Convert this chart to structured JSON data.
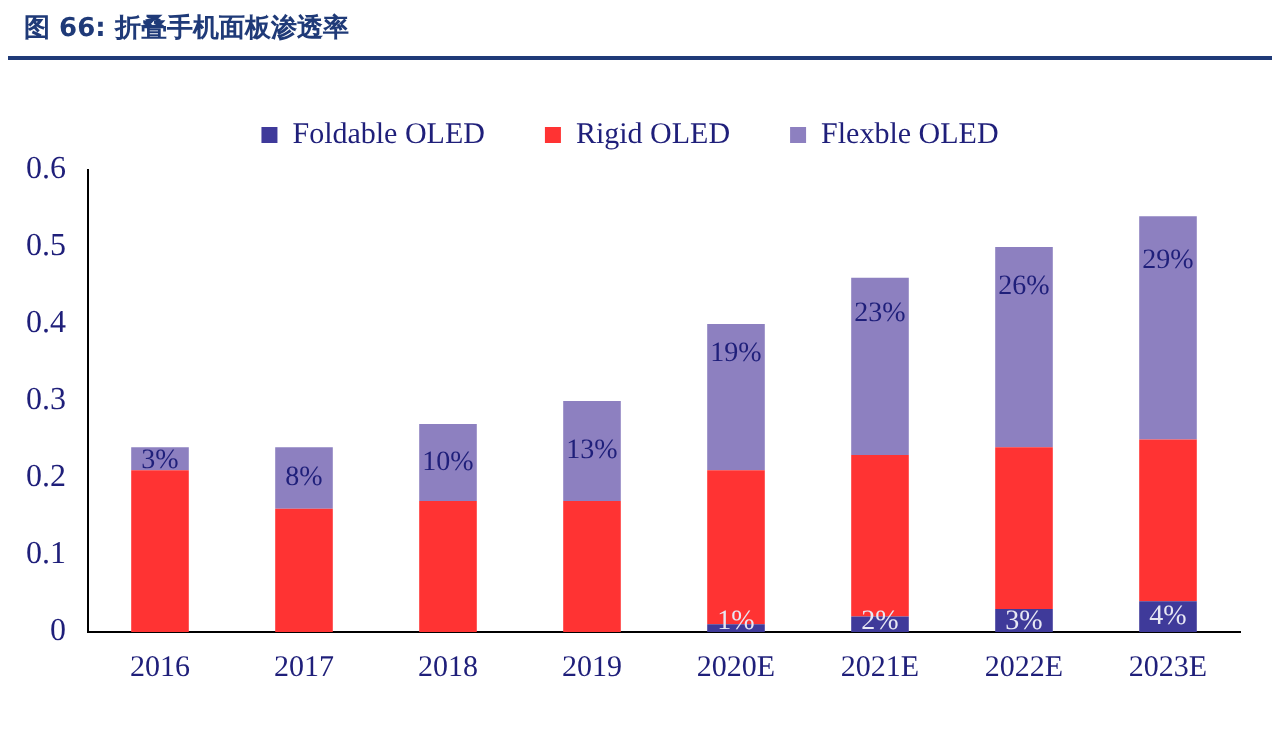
{
  "chart_data": {
    "type": "bar",
    "title": "图 66:  折叠手机面板渗透率",
    "stacked": true,
    "legend": "top",
    "grid": false,
    "categories": [
      "2016",
      "2017",
      "2018",
      "2019",
      "2020E",
      "2021E",
      "2022E",
      "2023E"
    ],
    "ylim": [
      0,
      0.6
    ],
    "yticks": [
      0,
      0.1,
      0.2,
      0.3,
      0.4,
      0.5,
      0.6
    ],
    "series": [
      {
        "name": "Foldable OLED",
        "color": "#3f3a9a",
        "values": [
          0,
          0,
          0,
          0,
          0.01,
          0.02,
          0.03,
          0.04
        ],
        "value_labels": [
          null,
          null,
          null,
          null,
          "1%",
          "2%",
          "3%",
          "4%"
        ]
      },
      {
        "name": "Rigid OLED",
        "color": "#ff3333",
        "values": [
          0.21,
          0.16,
          0.17,
          0.17,
          0.2,
          0.21,
          0.21,
          0.21
        ]
      },
      {
        "name": "Flexble OLED",
        "color": "#8d80c0",
        "values": [
          0.03,
          0.08,
          0.1,
          0.13,
          0.19,
          0.23,
          0.26,
          0.29
        ],
        "value_labels": [
          "3%",
          "8%",
          "10%",
          "13%",
          "19%",
          "23%",
          "26%",
          "29%"
        ]
      }
    ]
  }
}
